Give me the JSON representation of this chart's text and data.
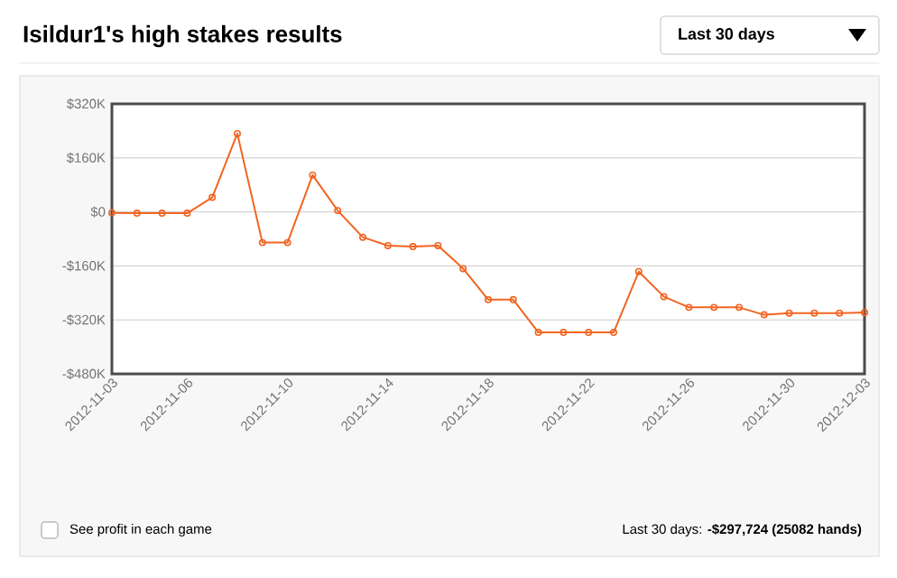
{
  "chart_data": {
    "type": "line",
    "title": "Isildur1's high stakes results",
    "x": [
      "2012-11-03",
      "2012-11-04",
      "2012-11-05",
      "2012-11-06",
      "2012-11-07",
      "2012-11-08",
      "2012-11-09",
      "2012-11-10",
      "2012-11-11",
      "2012-11-12",
      "2012-11-13",
      "2012-11-14",
      "2012-11-15",
      "2012-11-16",
      "2012-11-17",
      "2012-11-18",
      "2012-11-19",
      "2012-11-20",
      "2012-11-21",
      "2012-11-22",
      "2012-11-23",
      "2012-11-24",
      "2012-11-25",
      "2012-11-26",
      "2012-11-27",
      "2012-11-28",
      "2012-11-29",
      "2012-11-30",
      "2012-12-01",
      "2012-12-02",
      "2012-12-03"
    ],
    "values": [
      -3,
      -4,
      -4,
      -4,
      43,
      232,
      -91,
      -91,
      109,
      4,
      -75,
      -100,
      -103,
      -100,
      -168,
      -260,
      -260,
      -357,
      -357,
      -357,
      -357,
      -177,
      -251,
      -283,
      -283,
      -283,
      -305,
      -300,
      -300,
      -300,
      -298
    ],
    "color": "#f26522",
    "marker": "circle",
    "grid": "y",
    "xlim": [
      "2012-11-03",
      "2012-12-03"
    ],
    "xticks": [
      {
        "value": "2012-11-03",
        "label": "2012-11-03"
      },
      {
        "value": "2012-11-06",
        "label": "2012-11-06"
      },
      {
        "value": "2012-11-10",
        "label": "2012-11-10"
      },
      {
        "value": "2012-11-14",
        "label": "2012-11-14"
      },
      {
        "value": "2012-11-18",
        "label": "2012-11-18"
      },
      {
        "value": "2012-11-22",
        "label": "2012-11-22"
      },
      {
        "value": "2012-11-26",
        "label": "2012-11-26"
      },
      {
        "value": "2012-11-30",
        "label": "2012-11-30"
      },
      {
        "value": "2012-12-03",
        "label": "2012-12-03"
      }
    ],
    "ylim": [
      -480,
      320
    ],
    "yticks": [
      {
        "value": 320,
        "label": "$320K"
      },
      {
        "value": 160,
        "label": "$160K"
      },
      {
        "value": 0,
        "label": "$0"
      },
      {
        "value": -160,
        "label": "-$160K"
      },
      {
        "value": -320,
        "label": "-$320K"
      },
      {
        "value": -480,
        "label": "-$480K"
      }
    ],
    "annotations": [
      "Last 30 days",
      "See profit in each game",
      "Last 30 days: **-$297,724 (25082 hands)**"
    ]
  }
}
